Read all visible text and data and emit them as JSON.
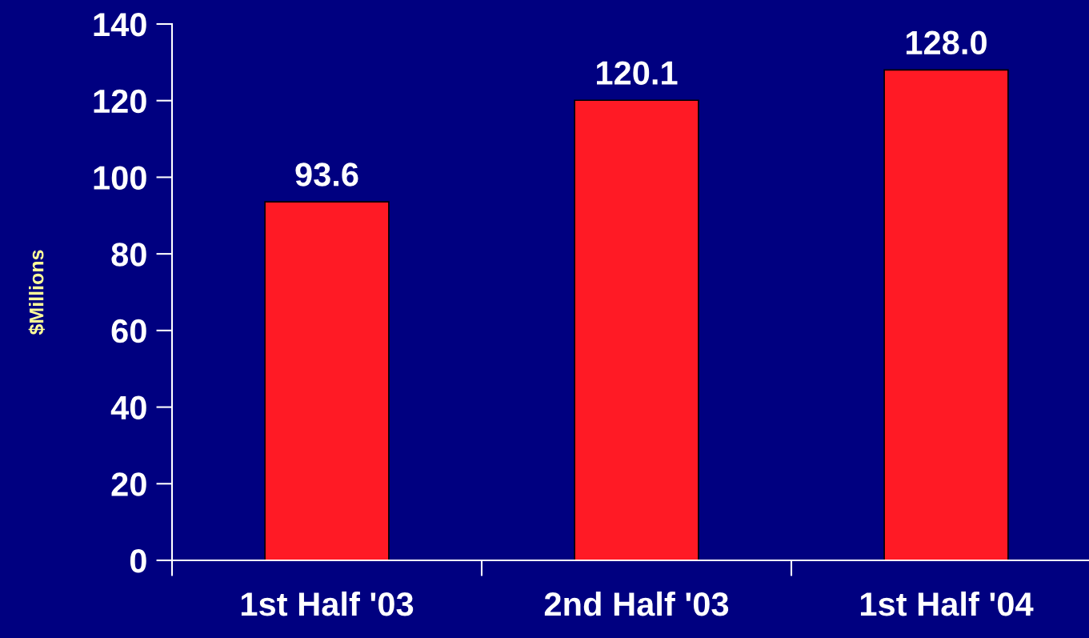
{
  "chart_data": {
    "type": "bar",
    "ylabel": "$Millions",
    "categories": [
      "1st Half '03",
      "2nd Half '03",
      "1st Half '04"
    ],
    "values": [
      93.6,
      120.1,
      128.0
    ],
    "value_labels": [
      "93.6",
      "120.1",
      "128.0"
    ],
    "color": "#ff1a25",
    "ylim": [
      0,
      140
    ],
    "yticks": [
      0,
      20,
      40,
      60,
      80,
      100,
      120,
      140
    ],
    "grid": false
  }
}
